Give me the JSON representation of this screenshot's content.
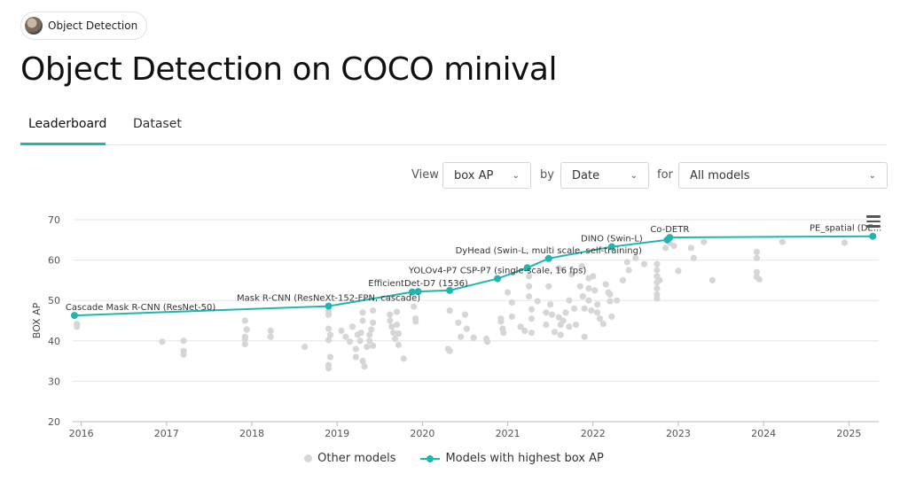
{
  "breadcrumb": {
    "label": "Object Detection"
  },
  "page": {
    "title": "Object Detection on COCO minival"
  },
  "tabs": [
    {
      "label": "Leaderboard"
    },
    {
      "label": "Dataset"
    }
  ],
  "controls": {
    "view_label": "View",
    "view_value": "box AP",
    "by_label": "by",
    "by_value": "Date",
    "for_label": "for",
    "for_value": "All models"
  },
  "colors": {
    "accent": "#21b5b0",
    "other": "#d6d6d6",
    "grid": "#e6e6e6"
  },
  "chart_data": {
    "type": "scatter",
    "ylabel": "BOX AP",
    "xlabel": "",
    "xlim": [
      2015.9,
      2025.35
    ],
    "ylim": [
      20,
      70
    ],
    "x_ticks": [
      "2016",
      "2017",
      "2018",
      "2019",
      "2020",
      "2021",
      "2022",
      "2023",
      "2024",
      "2025"
    ],
    "y_ticks": [
      20,
      30,
      40,
      50,
      60,
      70
    ],
    "grid": true,
    "legend": "bottom",
    "legend_labels": [
      "Other models",
      "Models with highest box AP"
    ],
    "sota": [
      {
        "x": 2015.92,
        "y": 46.3,
        "label": "Cascade Mask R-CNN (ResNet-50)"
      },
      {
        "x": 2018.9,
        "y": 48.6,
        "label": "Mask R-CNN (ResNeXt-152-FPN, cascade)"
      },
      {
        "x": 2019.88,
        "y": 52.1,
        "label": ""
      },
      {
        "x": 2019.95,
        "y": 52.2,
        "label": "EfficientDet-D7 (1536)"
      },
      {
        "x": 2020.32,
        "y": 52.5,
        "label": ""
      },
      {
        "x": 2020.88,
        "y": 55.4,
        "label": "YOLOv4-P7 CSP-P7 (single-scale, 16 fps)"
      },
      {
        "x": 2021.23,
        "y": 58.1,
        "label": ""
      },
      {
        "x": 2021.48,
        "y": 60.4,
        "label": "DyHead (Swin-L, multi scale, self-training)"
      },
      {
        "x": 2022.22,
        "y": 63.3,
        "label": "DINO (Swin-L)"
      },
      {
        "x": 2022.87,
        "y": 65.0,
        "label": ""
      },
      {
        "x": 2022.9,
        "y": 65.6,
        "label": "Co-DETR"
      },
      {
        "x": 2025.28,
        "y": 65.9,
        "label": "PE_spatial (DE..."
      }
    ],
    "others": [
      [
        2015.95,
        44.2
      ],
      [
        2015.95,
        43.5
      ],
      [
        2016.95,
        39.8
      ],
      [
        2017.2,
        40.0
      ],
      [
        2017.2,
        37.5
      ],
      [
        2017.2,
        36.6
      ],
      [
        2017.92,
        45.0
      ],
      [
        2017.92,
        41.0
      ],
      [
        2017.92,
        40.5
      ],
      [
        2017.92,
        39.2
      ],
      [
        2017.94,
        42.8
      ],
      [
        2018.22,
        42.5
      ],
      [
        2018.22,
        41.0
      ],
      [
        2018.62,
        38.5
      ],
      [
        2018.9,
        47.4
      ],
      [
        2018.9,
        46.5
      ],
      [
        2018.9,
        43.0
      ],
      [
        2018.92,
        41.5
      ],
      [
        2018.9,
        40.2
      ],
      [
        2018.92,
        36.0
      ],
      [
        2018.9,
        34.0
      ],
      [
        2018.9,
        33.2
      ],
      [
        2019.05,
        42.5
      ],
      [
        2019.1,
        41.0
      ],
      [
        2019.15,
        39.8
      ],
      [
        2019.18,
        43.5
      ],
      [
        2019.22,
        38.0
      ],
      [
        2019.22,
        36.0
      ],
      [
        2019.24,
        41.5
      ],
      [
        2019.27,
        40.0
      ],
      [
        2019.28,
        42.0
      ],
      [
        2019.3,
        47.0
      ],
      [
        2019.3,
        45.0
      ],
      [
        2019.3,
        35.0
      ],
      [
        2019.32,
        33.7
      ],
      [
        2019.35,
        38.5
      ],
      [
        2019.38,
        41.5
      ],
      [
        2019.38,
        40.0
      ],
      [
        2019.4,
        42.8
      ],
      [
        2019.42,
        47.5
      ],
      [
        2019.42,
        44.5
      ],
      [
        2019.42,
        38.8
      ],
      [
        2019.62,
        46.5
      ],
      [
        2019.62,
        45.0
      ],
      [
        2019.64,
        43.5
      ],
      [
        2019.66,
        42.0
      ],
      [
        2019.68,
        40.5
      ],
      [
        2019.7,
        47.2
      ],
      [
        2019.7,
        44.0
      ],
      [
        2019.72,
        41.8
      ],
      [
        2019.72,
        39.0
      ],
      [
        2019.78,
        35.6
      ],
      [
        2019.9,
        48.5
      ],
      [
        2019.92,
        45.5
      ],
      [
        2019.92,
        44.8
      ],
      [
        2020.32,
        47.5
      ],
      [
        2020.3,
        38.0
      ],
      [
        2020.32,
        37.5
      ],
      [
        2020.42,
        44.5
      ],
      [
        2020.45,
        41.0
      ],
      [
        2020.5,
        46.5
      ],
      [
        2020.52,
        43.0
      ],
      [
        2020.6,
        40.8
      ],
      [
        2020.75,
        40.5
      ],
      [
        2020.76,
        39.8
      ],
      [
        2020.92,
        45.5
      ],
      [
        2020.92,
        44.8
      ],
      [
        2020.94,
        43.0
      ],
      [
        2020.95,
        42.0
      ],
      [
        2021.0,
        52.0
      ],
      [
        2021.05,
        49.5
      ],
      [
        2021.05,
        46.0
      ],
      [
        2021.15,
        43.5
      ],
      [
        2021.2,
        42.5
      ],
      [
        2021.25,
        56.0
      ],
      [
        2021.25,
        53.5
      ],
      [
        2021.25,
        51.0
      ],
      [
        2021.28,
        47.8
      ],
      [
        2021.28,
        45.5
      ],
      [
        2021.28,
        42.0
      ],
      [
        2021.35,
        49.8
      ],
      [
        2021.45,
        47.0
      ],
      [
        2021.45,
        44.0
      ],
      [
        2021.48,
        53.5
      ],
      [
        2021.5,
        49.0
      ],
      [
        2021.52,
        46.5
      ],
      [
        2021.55,
        42.2
      ],
      [
        2021.6,
        45.8
      ],
      [
        2021.62,
        44.0
      ],
      [
        2021.62,
        41.5
      ],
      [
        2021.65,
        45.0
      ],
      [
        2021.68,
        47.0
      ],
      [
        2021.72,
        43.5
      ],
      [
        2021.72,
        50.0
      ],
      [
        2021.75,
        56.5
      ],
      [
        2021.78,
        48.0
      ],
      [
        2021.8,
        44.0
      ],
      [
        2021.85,
        53.5
      ],
      [
        2021.87,
        58.5
      ],
      [
        2021.88,
        51.0
      ],
      [
        2021.9,
        48.0
      ],
      [
        2021.9,
        41.0
      ],
      [
        2021.95,
        55.5
      ],
      [
        2021.95,
        53.0
      ],
      [
        2021.95,
        50.0
      ],
      [
        2021.98,
        47.5
      ],
      [
        2022.02,
        52.5
      ],
      [
        2022.05,
        49.0
      ],
      [
        2022.05,
        47.0
      ],
      [
        2022.08,
        45.5
      ],
      [
        2022.12,
        44.2
      ],
      [
        2022.15,
        54.0
      ],
      [
        2022.18,
        52.0
      ],
      [
        2022.2,
        51.5
      ],
      [
        2022.2,
        49.8
      ],
      [
        2022.22,
        46.0
      ],
      [
        2022.28,
        50.0
      ],
      [
        2022.35,
        55.0
      ],
      [
        2022.4,
        59.5
      ],
      [
        2022.42,
        57.5
      ],
      [
        2022.6,
        59.0
      ],
      [
        2022.75,
        59.0
      ],
      [
        2022.75,
        57.5
      ],
      [
        2022.75,
        56.0
      ],
      [
        2022.75,
        54.5
      ],
      [
        2022.75,
        53.0
      ],
      [
        2022.75,
        51.5
      ],
      [
        2022.75,
        50.5
      ],
      [
        2022.78,
        55.0
      ],
      [
        2022.85,
        63.0
      ],
      [
        2022.9,
        64.3
      ],
      [
        2022.95,
        63.5
      ],
      [
        2023.0,
        57.3
      ],
      [
        2023.15,
        63.0
      ],
      [
        2023.18,
        60.5
      ],
      [
        2023.3,
        64.5
      ],
      [
        2023.4,
        55.0
      ],
      [
        2023.92,
        62.0
      ],
      [
        2023.92,
        60.5
      ],
      [
        2023.92,
        57.0
      ],
      [
        2023.95,
        55.2
      ],
      [
        2023.92,
        55.8
      ],
      [
        2024.22,
        64.5
      ],
      [
        2024.95,
        64.3
      ],
      [
        2022.5,
        60.5
      ],
      [
        2022.0,
        56.0
      ],
      [
        2021.6,
        58.0
      ]
    ]
  }
}
